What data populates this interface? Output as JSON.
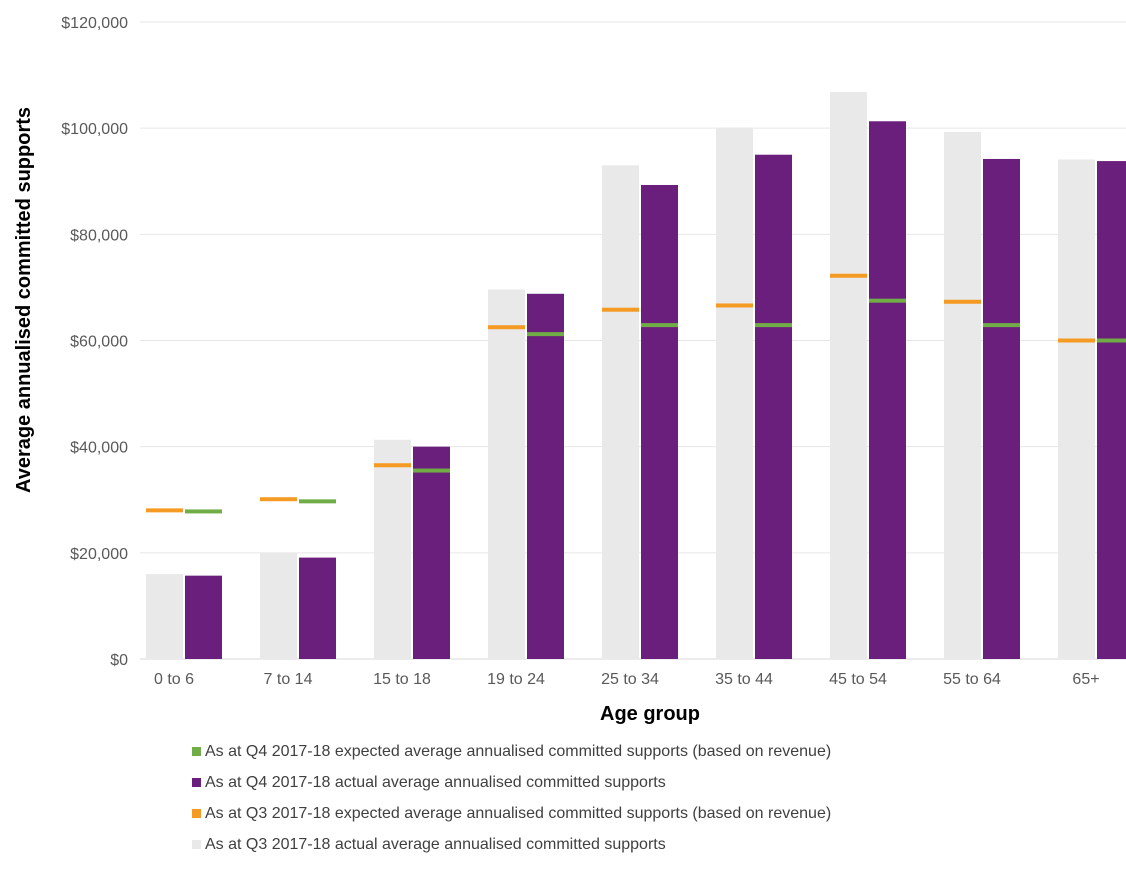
{
  "chart_data": {
    "type": "bar",
    "xlabel": "Age group",
    "ylabel": "Average annualised committed supports",
    "ylim": [
      0,
      120000
    ],
    "ytick_values": [
      0,
      20000,
      40000,
      60000,
      80000,
      100000,
      120000
    ],
    "ytick_labels": [
      "$0",
      "$20,000",
      "$40,000",
      "$60,000",
      "$80,000",
      "$100,000",
      "$120,000"
    ],
    "categories": [
      "0 to 6",
      "7 to 14",
      "15 to 18",
      "19 to 24",
      "25 to 34",
      "35 to 44",
      "45 to 54",
      "55 to 64",
      "65+"
    ],
    "grid": true,
    "legend_position": "bottom",
    "series": [
      {
        "name": "As at Q4 2017-18 expected average annualised committed supports (based on revenue)",
        "kind": "marker",
        "group": "q4",
        "color": "#70ad47",
        "values": [
          27800,
          29700,
          35500,
          61200,
          62900,
          62900,
          67500,
          62900,
          60000
        ]
      },
      {
        "name": "As at Q4 2017-18 actual average annualised committed supports",
        "kind": "bar",
        "group": "q4",
        "color": "#6b1f7c",
        "values": [
          15700,
          19100,
          40000,
          68800,
          89300,
          95000,
          101300,
          94200,
          93800
        ]
      },
      {
        "name": "As at Q3 2017-18  expected average annualised committed supports (based on revenue)",
        "kind": "marker",
        "group": "q3",
        "color": "#f59a23",
        "values": [
          28000,
          30100,
          36500,
          62500,
          65800,
          66600,
          72200,
          67300,
          60000
        ]
      },
      {
        "name": "As at Q3 2017-18 actual average annualised committed supports",
        "kind": "bar",
        "group": "q3",
        "color": "#e9e9e9",
        "values": [
          16000,
          20000,
          41300,
          69600,
          93000,
          100100,
          106800,
          99300,
          94100
        ]
      }
    ]
  }
}
